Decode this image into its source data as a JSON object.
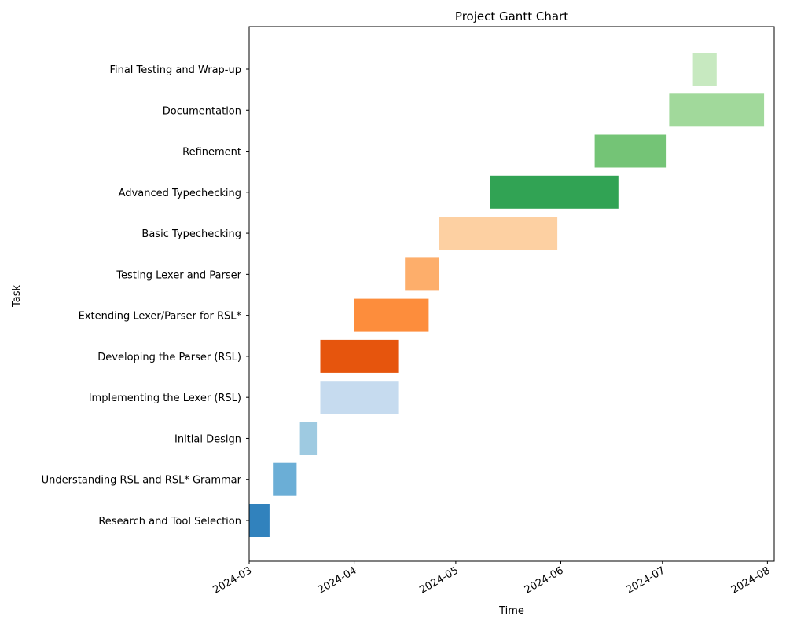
{
  "chart_data": {
    "type": "gantt",
    "title": "Project Gantt Chart",
    "xlabel": "Time",
    "ylabel": "Task",
    "x_axis_type": "date",
    "xlim": [
      "2024-03-01",
      "2024-08-03"
    ],
    "x_ticks": [
      "2024-03",
      "2024-04",
      "2024-05",
      "2024-06",
      "2024-07",
      "2024-08"
    ],
    "grid": false,
    "tasks": [
      {
        "task": "Research and Tool Selection",
        "start": "2024-03-01",
        "end": "2024-03-07",
        "color": "#3182bd"
      },
      {
        "task": "Understanding RSL and RSL* Grammar",
        "start": "2024-03-08",
        "end": "2024-03-15",
        "color": "#6baed6"
      },
      {
        "task": "Initial Design",
        "start": "2024-03-16",
        "end": "2024-03-21",
        "color": "#9ecae1"
      },
      {
        "task": "Implementing the Lexer (RSL)",
        "start": "2024-03-22",
        "end": "2024-04-14",
        "color": "#c6dbef"
      },
      {
        "task": "Developing the Parser (RSL)",
        "start": "2024-03-22",
        "end": "2024-04-14",
        "color": "#e6550d"
      },
      {
        "task": "Extending Lexer/Parser for RSL*",
        "start": "2024-04-01",
        "end": "2024-04-23",
        "color": "#fd8d3c"
      },
      {
        "task": "Testing Lexer and Parser",
        "start": "2024-04-16",
        "end": "2024-04-26",
        "color": "#fdae6b"
      },
      {
        "task": "Basic Typechecking",
        "start": "2024-04-26",
        "end": "2024-05-31",
        "color": "#fdd0a2"
      },
      {
        "task": "Advanced Typechecking",
        "start": "2024-05-11",
        "end": "2024-06-18",
        "color": "#31a354"
      },
      {
        "task": "Refinement",
        "start": "2024-06-11",
        "end": "2024-07-02",
        "color": "#74c476"
      },
      {
        "task": "Documentation",
        "start": "2024-07-03",
        "end": "2024-07-31",
        "color": "#a1d99b"
      },
      {
        "task": "Final Testing and Wrap-up",
        "start": "2024-07-10",
        "end": "2024-07-17",
        "color": "#c7e9c0"
      }
    ]
  }
}
